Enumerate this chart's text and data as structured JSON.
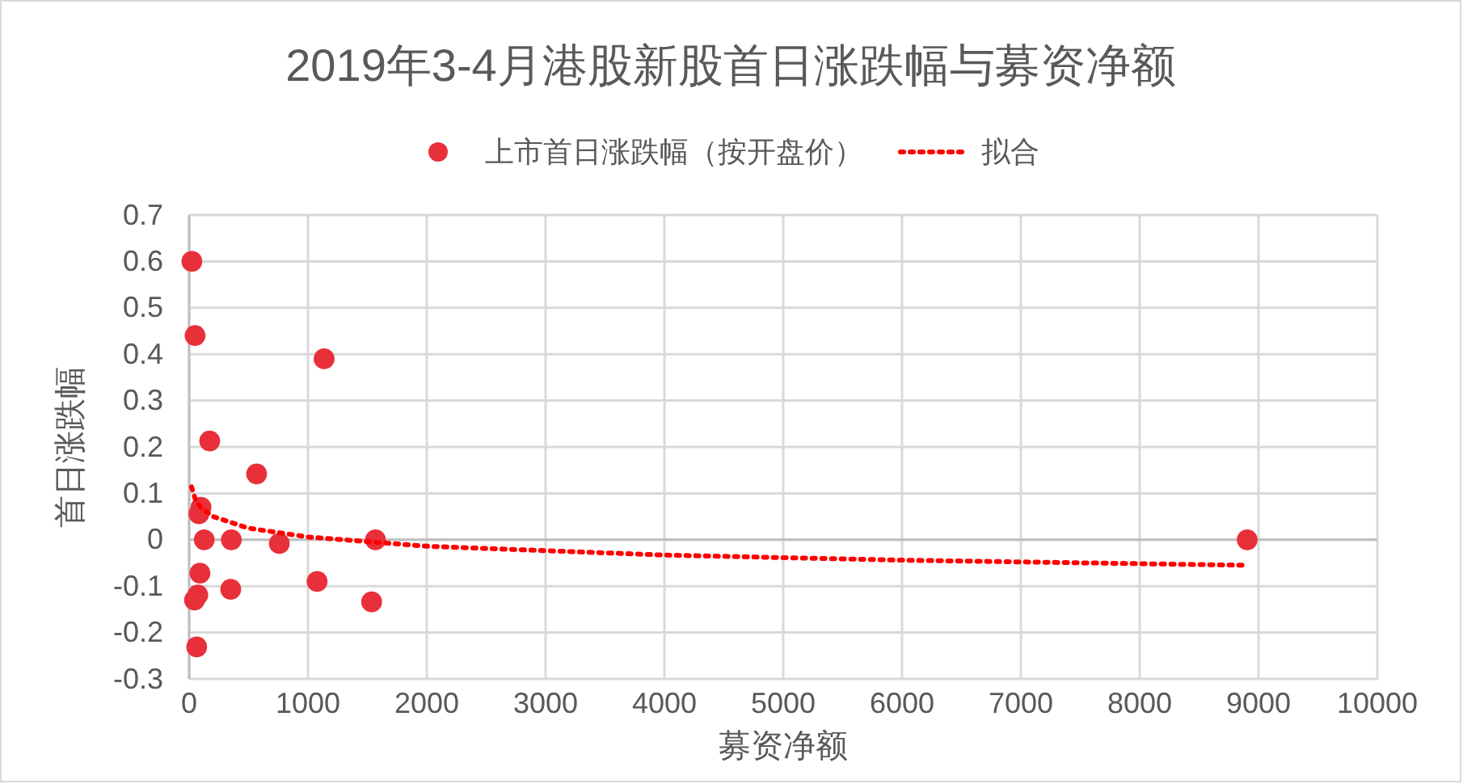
{
  "chart_data": {
    "type": "scatter",
    "title": "2019年3-4月港股新股首日涨跌幅与募资净额",
    "xlabel": "募资净额",
    "ylabel": "首日涨跌幅",
    "xlim": [
      0,
      10000
    ],
    "xticks": [
      0,
      1000,
      2000,
      3000,
      4000,
      5000,
      6000,
      7000,
      8000,
      9000,
      10000
    ],
    "ylim": [
      -0.3,
      0.7
    ],
    "yticks": [
      {
        "value": -0.3,
        "label": "-0.3"
      },
      {
        "value": -0.2,
        "label": "-0.2"
      },
      {
        "value": -0.1,
        "label": "-0.1"
      },
      0,
      0.1,
      0.2,
      0.3,
      0.4,
      0.5,
      0.6,
      0.7
    ],
    "grid": true,
    "legend": "top",
    "series": [
      {
        "name": "上市首日涨跌幅（按开盘价）",
        "color": "#e8303a",
        "marker": "circle",
        "x": [
          23,
          50,
          1136,
          173,
          568,
          100,
          82,
          127,
          355,
          1568,
          759,
          91,
          1077,
          350,
          73,
          45,
          1536,
          64,
          8905
        ],
        "values": [
          0.6,
          0.44,
          0.39,
          0.213,
          0.142,
          0.07,
          0.056,
          0,
          0,
          0,
          -0.008,
          -0.072,
          -0.09,
          -0.107,
          -0.119,
          -0.13,
          -0.134,
          -0.231,
          0
        ]
      },
      {
        "name": "拟合",
        "type": "line",
        "color": "#ff0000",
        "line_style": "dotted",
        "x": [
          20,
          50,
          100,
          200,
          500,
          1000,
          2000,
          4000,
          6000,
          8900
        ],
        "values": [
          0.114,
          0.089,
          0.069,
          0.05,
          0.025,
          0.006,
          -0.014,
          -0.033,
          -0.044,
          -0.055
        ]
      }
    ]
  }
}
